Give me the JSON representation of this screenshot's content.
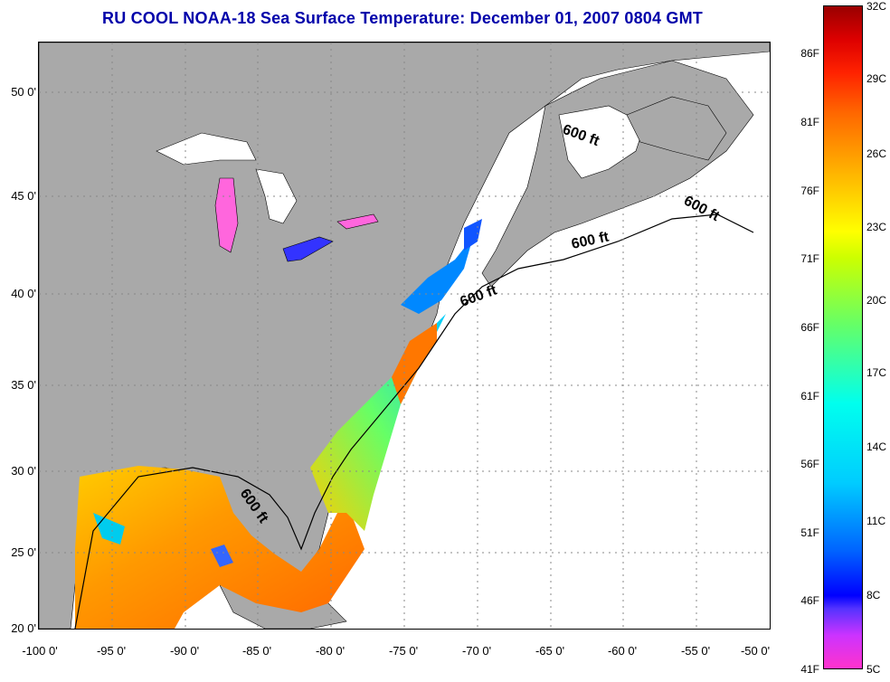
{
  "title": "RU COOL  NOAA-18  Sea Surface Temperature:  December 01, 2007 0804 GMT",
  "latitude_labels": [
    "50 0'",
    "45 0'",
    "40 0'",
    "35 0'",
    "30 0'",
    "25 0'",
    "20 0'"
  ],
  "longitude_labels": [
    "-100 0'",
    "-95 0'",
    "-90 0'",
    "-85 0'",
    "-80 0'",
    "-75 0'",
    "-70 0'",
    "-65 0'",
    "-60 0'",
    "-55 0'",
    "-50 0'"
  ],
  "depth_contour_label": "600 ft",
  "colorbar": {
    "fahrenheit_labels": [
      "86F",
      "81F",
      "76F",
      "71F",
      "66F",
      "61F",
      "56F",
      "51F",
      "46F",
      "41F"
    ],
    "celsius_labels": [
      "32C",
      "29C",
      "26C",
      "23C",
      "20C",
      "17C",
      "14C",
      "11C",
      "8C",
      "5C"
    ],
    "colors_low_to_high": [
      "#ff33cc",
      "#cc33ff",
      "#0000ff",
      "#00ccff",
      "#66ff66",
      "#ffff00",
      "#ff9900",
      "#ff2200",
      "#990000"
    ]
  },
  "colors": {
    "land": "#a9a9a9",
    "ocean_no_data": "#ffffff",
    "title": "#0000aa"
  }
}
